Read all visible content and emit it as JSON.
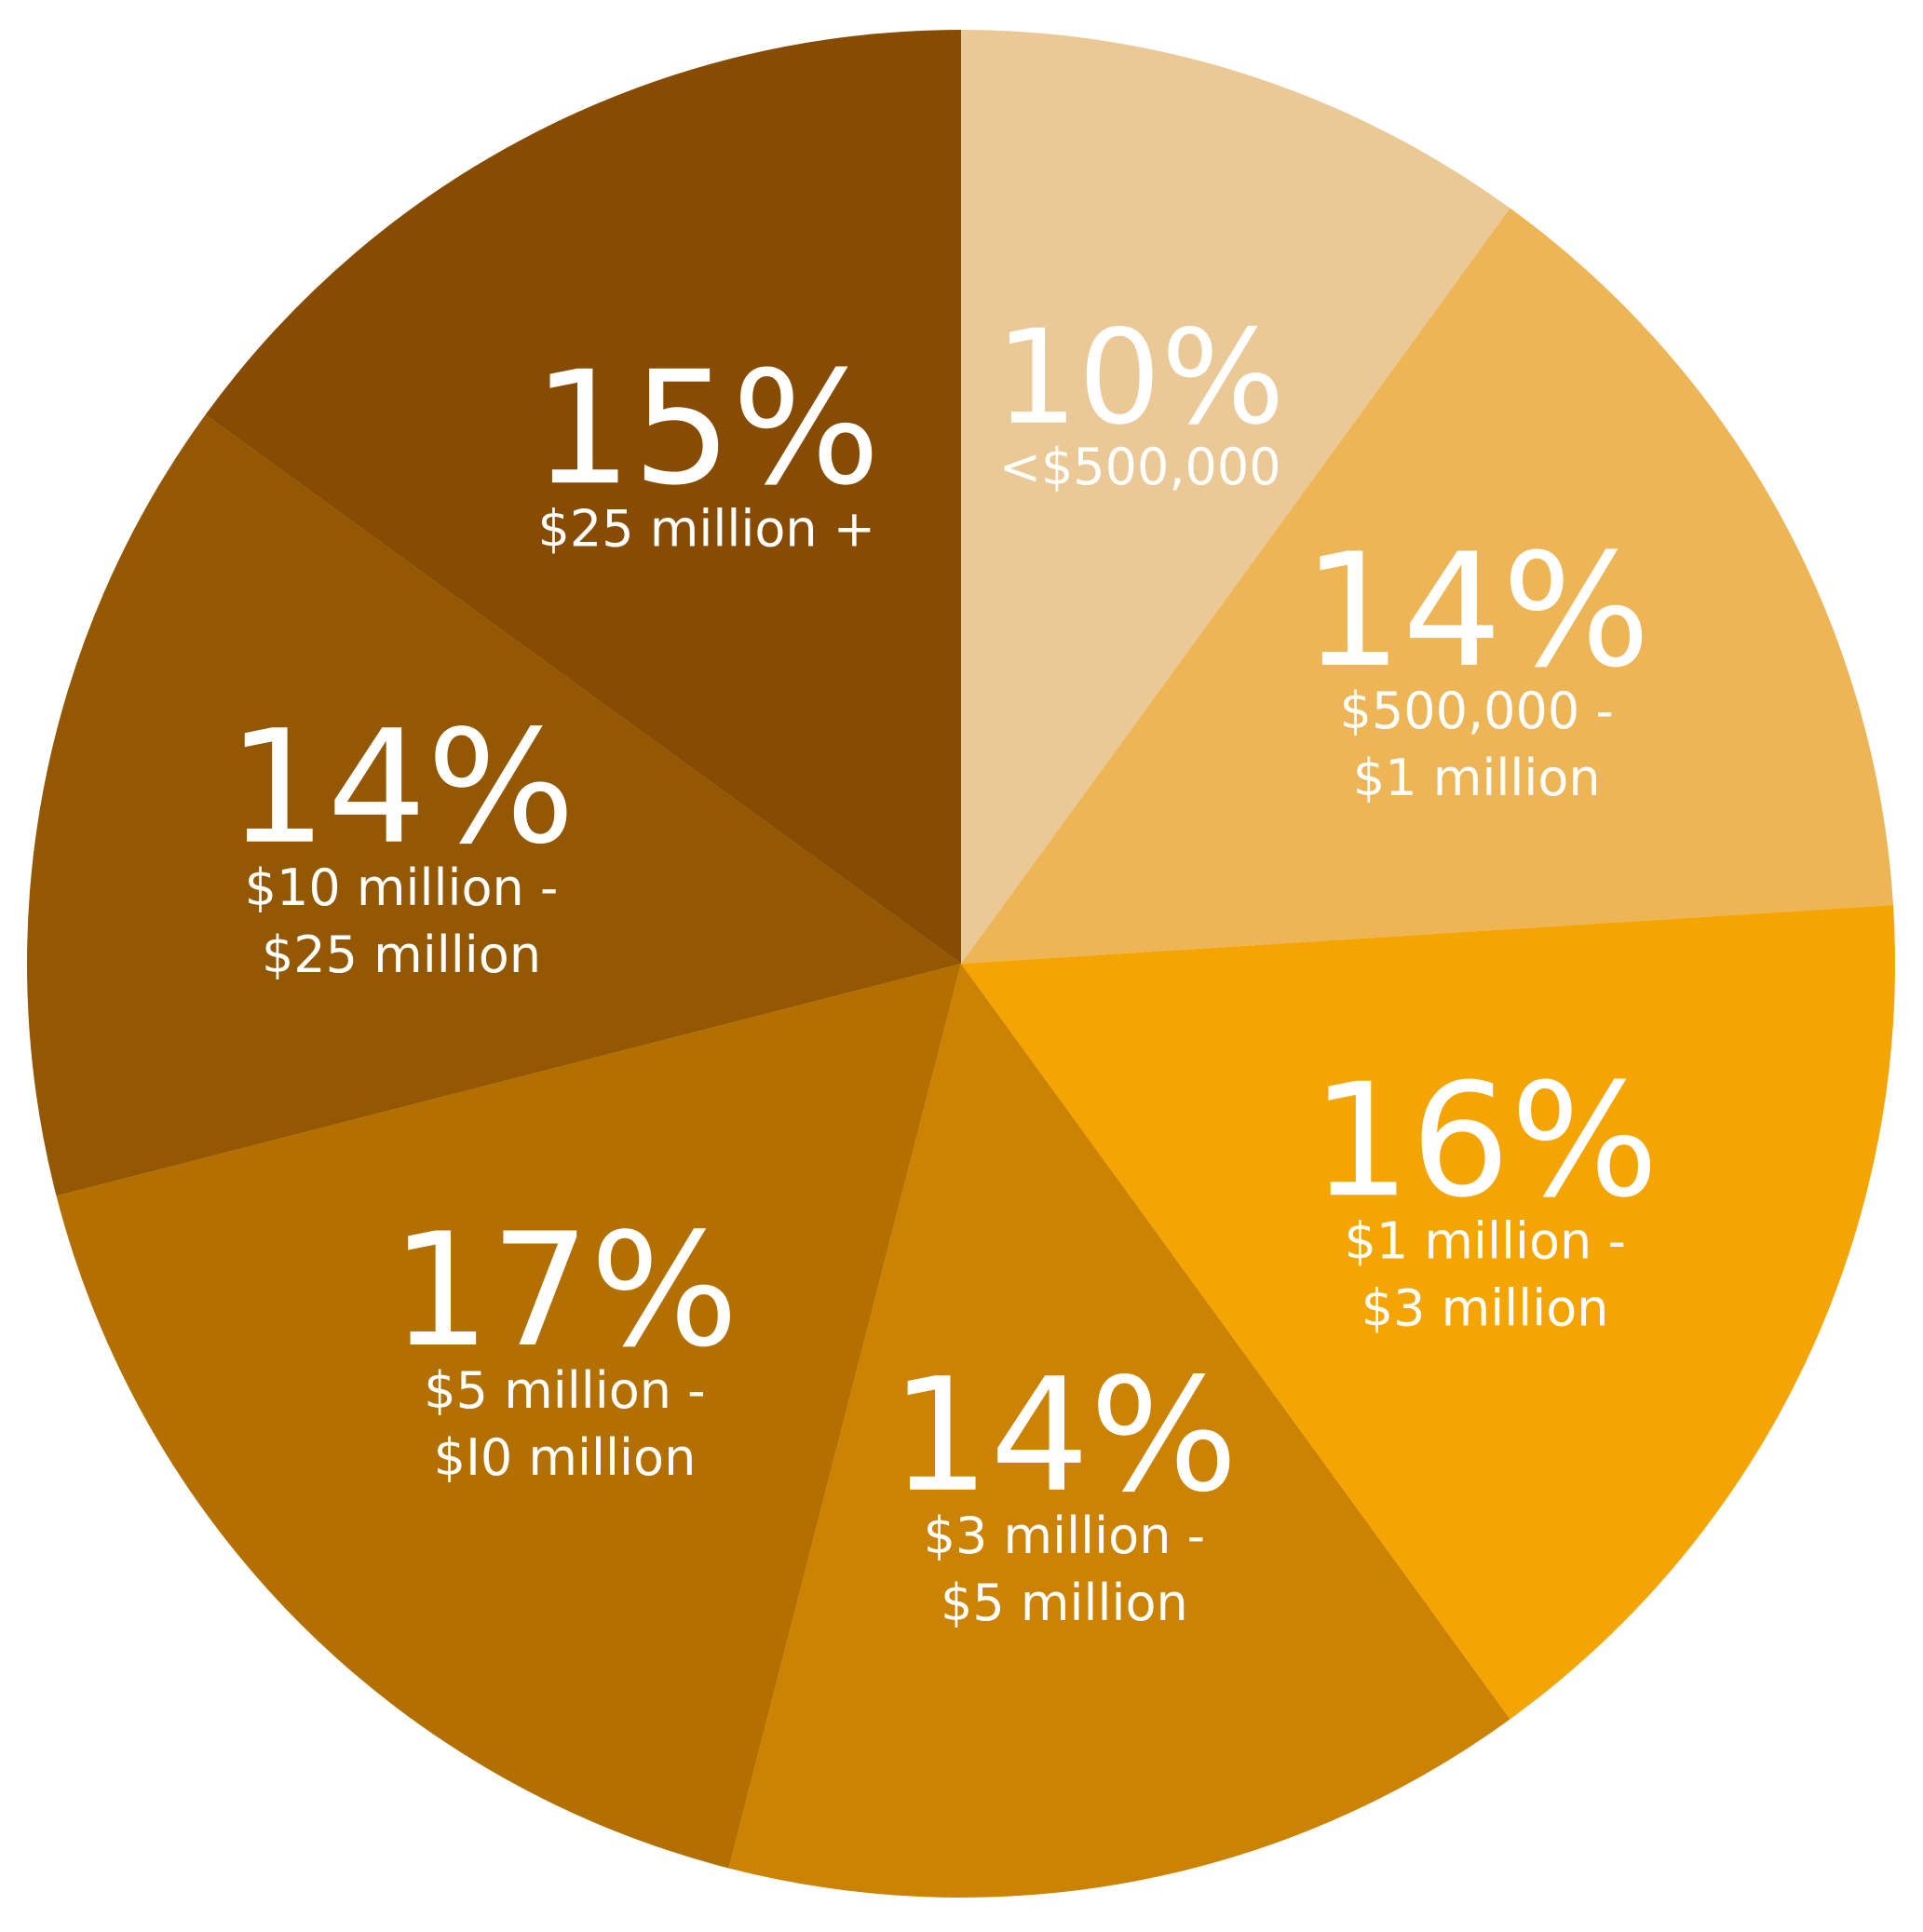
{
  "chart_data": {
    "type": "pie",
    "start_angle_deg": 0,
    "direction": "clockwise",
    "slices": [
      {
        "percent_label": "10%",
        "value": 10,
        "label_lines": [
          "<$500,000"
        ],
        "color": "#ebc997"
      },
      {
        "percent_label": "14%",
        "value": 14,
        "label_lines": [
          "$500,000 -",
          "$1 million"
        ],
        "color": "#edb556"
      },
      {
        "percent_label": "16%",
        "value": 16,
        "label_lines": [
          "$1 million -",
          "$3 million"
        ],
        "color": "#f5a503"
      },
      {
        "percent_label": "14%",
        "value": 14,
        "label_lines": [
          "$3 million -",
          "$5 million"
        ],
        "color": "#cc8203"
      },
      {
        "percent_label": "17%",
        "value": 17,
        "label_lines": [
          "$5 million -",
          "$I0 million"
        ],
        "color": "#b37001"
      },
      {
        "percent_label": "14%",
        "value": 14,
        "label_lines": [
          "$10 million -",
          "$25 million"
        ],
        "color": "#945702"
      },
      {
        "percent_label": "15%",
        "value": 15,
        "label_lines": [
          "$25 million +"
        ],
        "color": "#874c02"
      }
    ]
  }
}
